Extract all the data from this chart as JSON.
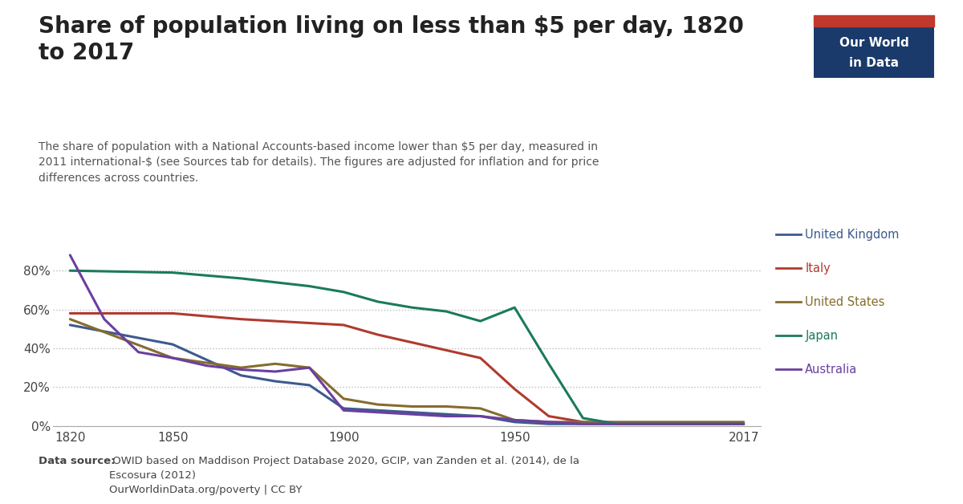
{
  "title": "Share of population living on less than $5 per day, 1820\nto 2017",
  "subtitle": "The share of population with a National Accounts-based income lower than $5 per day, measured in\n2011 international-$ (see Sources tab for details). The figures are adjusted for inflation and for price\ndifferences across countries.",
  "datasource_bold": "Data source:",
  "datasource_normal": " OWID based on Maddison Project Database 2020, GCIP, van Zanden et al. (2014), de la\nEscosura (2012)\nOurWorldinData.org/poverty | CC BY",
  "countries": {
    "United Kingdom": {
      "color": "#3d5a8e",
      "data": {
        "1820": 52,
        "1850": 42,
        "1870": 26,
        "1880": 23,
        "1890": 21,
        "1900": 9,
        "1910": 8,
        "1920": 7,
        "1930": 6,
        "1940": 5,
        "1950": 2,
        "1960": 1,
        "1970": 1,
        "1980": 1,
        "1990": 1,
        "2000": 1,
        "2017": 1
      }
    },
    "Italy": {
      "color": "#b03a2e",
      "data": {
        "1820": 58,
        "1850": 58,
        "1870": 55,
        "1880": 54,
        "1890": 53,
        "1900": 52,
        "1910": 47,
        "1920": 43,
        "1930": 39,
        "1940": 35,
        "1950": 19,
        "1960": 5,
        "1970": 2,
        "1980": 1,
        "1990": 1,
        "2000": 1,
        "2017": 1
      }
    },
    "United States": {
      "color": "#856c2e",
      "data": {
        "1820": 55,
        "1850": 35,
        "1870": 30,
        "1880": 32,
        "1890": 30,
        "1900": 14,
        "1910": 11,
        "1920": 10,
        "1930": 10,
        "1940": 9,
        "1950": 3,
        "1960": 2,
        "1970": 2,
        "1980": 2,
        "1990": 2,
        "2000": 2,
        "2017": 2
      }
    },
    "Japan": {
      "color": "#1a7a5e",
      "data": {
        "1820": 80,
        "1850": 79,
        "1870": 76,
        "1880": 74,
        "1890": 72,
        "1900": 69,
        "1910": 64,
        "1920": 61,
        "1930": 59,
        "1940": 54,
        "1950": 61,
        "1960": 32,
        "1970": 4,
        "1980": 1,
        "1990": 1,
        "2000": 1,
        "2017": 1
      }
    },
    "Australia": {
      "color": "#6b3fa0",
      "data": {
        "1820": 88,
        "1830": 55,
        "1840": 38,
        "1850": 35,
        "1860": 31,
        "1870": 29,
        "1880": 28,
        "1890": 30,
        "1900": 8,
        "1910": 7,
        "1920": 6,
        "1930": 5,
        "1940": 5,
        "1950": 3,
        "1960": 2,
        "1970": 1,
        "1980": 1,
        "1990": 1,
        "2000": 1,
        "2017": 1
      }
    }
  },
  "ylim": [
    0,
    100
  ],
  "yticks": [
    0,
    20,
    40,
    60,
    80
  ],
  "background_color": "#ffffff",
  "owid_box_color": "#1a3a6b",
  "owid_box_red": "#c0392b",
  "country_order": [
    "United Kingdom",
    "Italy",
    "United States",
    "Japan",
    "Australia"
  ]
}
